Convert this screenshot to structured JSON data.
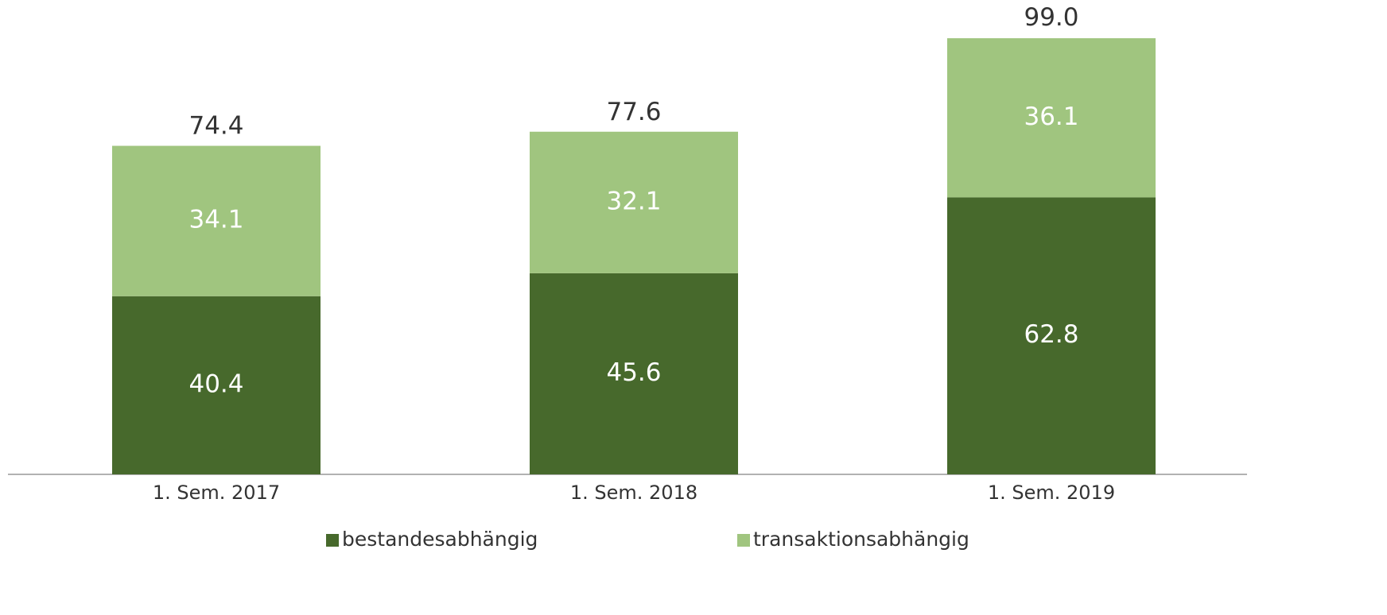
{
  "chart_data": {
    "type": "stacked_bar",
    "categories": [
      "1. Sem. 2017",
      "1. Sem. 2018",
      "1. Sem. 2019"
    ],
    "series": [
      {
        "name": "bestandesabhängig",
        "color": "#47692c",
        "values": [
          40.4,
          45.6,
          62.8
        ]
      },
      {
        "name": "transaktionsabhängig",
        "color": "#a0c57f",
        "values": [
          34.1,
          32.1,
          36.1
        ]
      }
    ],
    "totals": [
      74.4,
      77.6,
      99.0
    ],
    "totals_labels": [
      "74.4",
      "77.6",
      "99.0"
    ],
    "ylim": [
      0,
      100
    ],
    "legend": "bottom"
  }
}
